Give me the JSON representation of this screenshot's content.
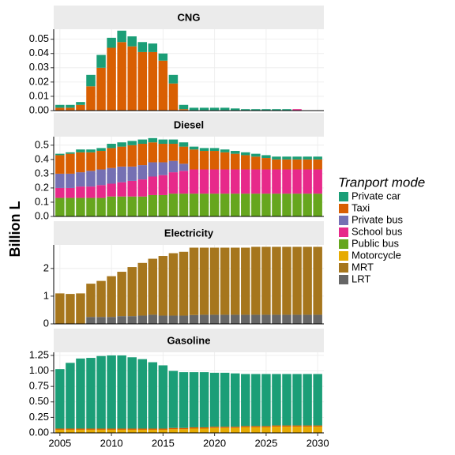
{
  "chart_data": {
    "type": "bar",
    "stacked": true,
    "ylabel": "Billion L",
    "legend_title": "Tranport mode",
    "legend": [
      {
        "name": "Private car",
        "color": "#1b9e77"
      },
      {
        "name": "Taxi",
        "color": "#d95f02"
      },
      {
        "name": "Private bus",
        "color": "#7570b3"
      },
      {
        "name": "School bus",
        "color": "#e7298a"
      },
      {
        "name": "Public bus",
        "color": "#66a61e"
      },
      {
        "name": "Motorcycle",
        "color": "#e6ab02"
      },
      {
        "name": "MRT",
        "color": "#a6761d"
      },
      {
        "name": "LRT",
        "color": "#666666"
      }
    ],
    "x": [
      2005,
      2006,
      2007,
      2008,
      2009,
      2010,
      2011,
      2012,
      2013,
      2014,
      2015,
      2016,
      2017,
      2018,
      2019,
      2020,
      2021,
      2022,
      2023,
      2024,
      2025,
      2026,
      2027,
      2028,
      2029,
      2030
    ],
    "xlim": [
      2004.4,
      2030.6
    ],
    "xticks": [
      2005,
      2010,
      2015,
      2020,
      2025,
      2030
    ],
    "facets": [
      {
        "title": "CNG",
        "ylim": [
          0,
          0.057
        ],
        "yticks": [
          {
            "value": 0,
            "label": "0.00"
          },
          {
            "value": 0.01,
            "label": "0.01"
          },
          {
            "value": 0.02,
            "label": "0.02"
          },
          {
            "value": 0.03,
            "label": "0.03"
          },
          {
            "value": 0.04,
            "label": "0.04"
          },
          {
            "value": 0.05,
            "label": "0.05"
          }
        ],
        "series": [
          {
            "name": "Private car",
            "color": "#1b9e77",
            "values": [
              0.002,
              0.002,
              0.002,
              0.008,
              0.009,
              0.007,
              0.008,
              0.007,
              0.007,
              0.006,
              0.005,
              0.006,
              0.003,
              0.002,
              0.002,
              0.002,
              0.002,
              0.0015,
              0.001,
              0.001,
              0.001,
              0.001,
              0.001,
              0,
              0,
              0
            ]
          },
          {
            "name": "Taxi",
            "color": "#d95f02",
            "values": [
              0.002,
              0.002,
              0.004,
              0.017,
              0.03,
              0.044,
              0.048,
              0.045,
              0.041,
              0.041,
              0.035,
              0.019,
              0.001,
              0,
              0,
              0,
              0,
              0,
              0,
              0,
              0,
              0,
              0,
              0,
              0,
              0
            ]
          },
          {
            "name": "School bus",
            "color": "#e7298a",
            "values": [
              0,
              0,
              0,
              0,
              0,
              0,
              0,
              0,
              0,
              0,
              0,
              0,
              0,
              0,
              0,
              0,
              0,
              0,
              0,
              0,
              0,
              0,
              0,
              0.001,
              0,
              0
            ]
          }
        ]
      },
      {
        "title": "Diesel",
        "ylim": [
          0,
          0.56
        ],
        "yticks": [
          {
            "value": 0,
            "label": "0.0"
          },
          0.1,
          0.2,
          0.3,
          0.4,
          0.5
        ],
        "series": [
          {
            "name": "Private car",
            "color": "#1b9e77",
            "values": [
              0.01,
              0.01,
              0.02,
              0.02,
              0.02,
              0.03,
              0.03,
              0.03,
              0.03,
              0.03,
              0.03,
              0.03,
              0.03,
              0.02,
              0.02,
              0.02,
              0.02,
              0.02,
              0.02,
              0.02,
              0.02,
              0.02,
              0.02,
              0.02,
              0.02,
              0.02
            ]
          },
          {
            "name": "Taxi",
            "color": "#d95f02",
            "values": [
              0.13,
              0.14,
              0.14,
              0.13,
              0.13,
              0.14,
              0.14,
              0.15,
              0.15,
              0.14,
              0.13,
              0.12,
              0.12,
              0.14,
              0.13,
              0.13,
              0.12,
              0.11,
              0.1,
              0.09,
              0.08,
              0.07,
              0.07,
              0.07,
              0.07,
              0.07
            ]
          },
          {
            "name": "Private bus",
            "color": "#7570b3",
            "values": [
              0.1,
              0.1,
              0.1,
              0.11,
              0.11,
              0.11,
              0.11,
              0.1,
              0.1,
              0.1,
              0.09,
              0.08,
              0.05,
              0,
              0,
              0,
              0,
              0,
              0,
              0,
              0,
              0,
              0,
              0,
              0,
              0
            ]
          },
          {
            "name": "School bus",
            "color": "#e7298a",
            "values": [
              0.07,
              0.07,
              0.08,
              0.08,
              0.09,
              0.09,
              0.1,
              0.11,
              0.12,
              0.13,
              0.14,
              0.15,
              0.16,
              0.17,
              0.17,
              0.17,
              0.17,
              0.17,
              0.17,
              0.17,
              0.17,
              0.17,
              0.17,
              0.17,
              0.17,
              0.17
            ]
          },
          {
            "name": "Public bus",
            "color": "#66a61e",
            "values": [
              0.13,
              0.13,
              0.13,
              0.13,
              0.13,
              0.14,
              0.14,
              0.14,
              0.14,
              0.15,
              0.15,
              0.16,
              0.16,
              0.16,
              0.16,
              0.16,
              0.16,
              0.16,
              0.16,
              0.16,
              0.16,
              0.16,
              0.16,
              0.16,
              0.16,
              0.16
            ]
          }
        ]
      },
      {
        "title": "Electricity",
        "ylim": [
          0,
          2.85
        ],
        "yticks": [
          0,
          1,
          2
        ],
        "series": [
          {
            "name": "MRT",
            "color": "#a6761d",
            "values": [
              1.1,
              1.08,
              1.1,
              1.2,
              1.3,
              1.47,
              1.6,
              1.77,
              1.9,
              2.02,
              2.15,
              2.25,
              2.3,
              2.43,
              2.42,
              2.42,
              2.42,
              2.42,
              2.42,
              2.45,
              2.45,
              2.45,
              2.45,
              2.45,
              2.45,
              2.45
            ]
          },
          {
            "name": "LRT",
            "color": "#666666",
            "values": [
              0,
              0,
              0,
              0.25,
              0.25,
              0.25,
              0.28,
              0.28,
              0.3,
              0.33,
              0.3,
              0.3,
              0.3,
              0.32,
              0.33,
              0.33,
              0.33,
              0.33,
              0.33,
              0.33,
              0.33,
              0.33,
              0.33,
              0.33,
              0.33,
              0.33
            ]
          }
        ]
      },
      {
        "title": "Gasoline",
        "ylim": [
          0,
          1.3
        ],
        "yticks": [
          {
            "value": 0,
            "label": "0.00"
          },
          {
            "value": 0.25,
            "label": "0.25"
          },
          {
            "value": 0.5,
            "label": "0.50"
          },
          {
            "value": 0.75,
            "label": "0.75"
          },
          {
            "value": 1,
            "label": "1.00"
          },
          1.25
        ],
        "series": [
          {
            "name": "Private car",
            "color": "#1b9e77",
            "values": [
              0.96,
              1.06,
              1.13,
              1.14,
              1.17,
              1.18,
              1.18,
              1.15,
              1.12,
              1.07,
              1.02,
              0.92,
              0.9,
              0.89,
              0.89,
              0.87,
              0.87,
              0.86,
              0.84,
              0.84,
              0.84,
              0.83,
              0.83,
              0.83,
              0.83,
              0.83
            ]
          },
          {
            "name": "Taxi",
            "color": "#d95f02",
            "values": [
              0.02,
              0.02,
              0.02,
              0.02,
              0.02,
              0.02,
              0.02,
              0.02,
              0.02,
              0.02,
              0.02,
              0.02,
              0.02,
              0.02,
              0.02,
              0.02,
              0.02,
              0.02,
              0.02,
              0.02,
              0.02,
              0.02,
              0.02,
              0.02,
              0.02,
              0.02
            ]
          },
          {
            "name": "Motorcycle",
            "color": "#e6ab02",
            "values": [
              0.05,
              0.05,
              0.05,
              0.05,
              0.05,
              0.05,
              0.05,
              0.05,
              0.05,
              0.05,
              0.05,
              0.06,
              0.06,
              0.07,
              0.07,
              0.08,
              0.08,
              0.08,
              0.09,
              0.09,
              0.09,
              0.1,
              0.1,
              0.1,
              0.1,
              0.1
            ]
          }
        ]
      }
    ]
  }
}
